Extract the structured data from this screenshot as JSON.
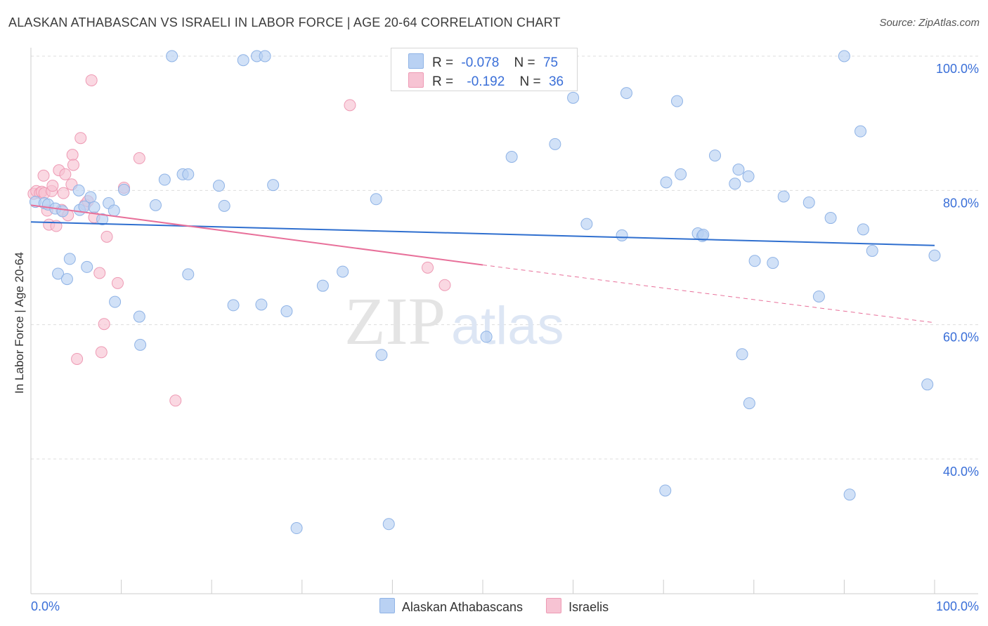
{
  "title": "ALASKAN ATHABASCAN VS ISRAELI IN LABOR FORCE | AGE 20-64 CORRELATION CHART",
  "source": "Source: ZipAtlas.com",
  "watermark": {
    "zip": "ZIP",
    "atlas": "atlas"
  },
  "colors": {
    "blue_fill": "#b9d1f3",
    "blue_stroke": "#8fb3e6",
    "blue_line": "#2f6fcf",
    "pink_fill": "#f7c3d3",
    "pink_stroke": "#ee9ab4",
    "pink_line": "#e8709a",
    "axis_text": "#3a6fd8",
    "grid": "#dddddd"
  },
  "legend_top": {
    "rows": [
      {
        "series": "blue",
        "r_label": "R =",
        "r_value": "-0.078",
        "n_label": "N =",
        "n_value": "75"
      },
      {
        "series": "pink",
        "r_label": "R =",
        "r_value": "-0.192",
        "n_label": "N =",
        "n_value": "36"
      }
    ]
  },
  "legend_bottom": [
    {
      "series": "blue",
      "label": "Alaskan Athabascans"
    },
    {
      "series": "pink",
      "label": "Israelis"
    }
  ],
  "chart_data": {
    "type": "scatter",
    "title": "ALASKAN ATHABASCAN VS ISRAELI IN LABOR FORCE | AGE 20-64 CORRELATION CHART",
    "xlabel": "",
    "ylabel": "In Labor Force | Age 20-64",
    "xlim": [
      0,
      100
    ],
    "ylim": [
      20,
      101
    ],
    "x_tick_labels": [
      {
        "value": 0,
        "label": "0.0%"
      },
      {
        "value": 100,
        "label": "100.0%"
      }
    ],
    "y_tick_labels": [
      {
        "value": 100,
        "label": "100.0%"
      },
      {
        "value": 80,
        "label": "80.0%"
      },
      {
        "value": 60,
        "label": "60.0%"
      },
      {
        "value": 40,
        "label": "40.0%"
      }
    ],
    "series": [
      {
        "name": "Alaskan Athabascans",
        "color": "blue",
        "r": -0.078,
        "n": 75,
        "trend": {
          "x0": 0,
          "y0": 75.3,
          "x1": 100,
          "y1": 71.8
        },
        "points": [
          [
            0.5,
            78.3
          ],
          [
            1.5,
            78.1
          ],
          [
            1.9,
            77.9
          ],
          [
            2.7,
            77.3
          ],
          [
            3.5,
            76.9
          ],
          [
            3.0,
            67.6
          ],
          [
            4.0,
            66.8
          ],
          [
            4.3,
            69.8
          ],
          [
            5.4,
            77.1
          ],
          [
            5.3,
            80.0
          ],
          [
            6.2,
            68.6
          ],
          [
            6.6,
            79.0
          ],
          [
            5.9,
            77.6
          ],
          [
            7.9,
            75.7
          ],
          [
            8.6,
            78.1
          ],
          [
            9.2,
            77.0
          ],
          [
            9.3,
            63.4
          ],
          [
            10.3,
            80.1
          ],
          [
            12.0,
            61.2
          ],
          [
            12.1,
            57.0
          ],
          [
            13.8,
            77.8
          ],
          [
            14.8,
            81.6
          ],
          [
            15.6,
            100.0
          ],
          [
            16.8,
            82.4
          ],
          [
            17.4,
            82.4
          ],
          [
            17.4,
            67.5
          ],
          [
            20.8,
            80.7
          ],
          [
            21.4,
            77.7
          ],
          [
            22.4,
            62.9
          ],
          [
            23.5,
            99.4
          ],
          [
            25.0,
            100.0
          ],
          [
            25.5,
            63.0
          ],
          [
            25.9,
            100.0
          ],
          [
            26.8,
            80.8
          ],
          [
            28.3,
            62.0
          ],
          [
            29.4,
            29.7
          ],
          [
            32.3,
            65.8
          ],
          [
            34.5,
            67.9
          ],
          [
            38.2,
            78.7
          ],
          [
            38.8,
            55.5
          ],
          [
            39.6,
            30.3
          ],
          [
            50.4,
            58.2
          ],
          [
            53.2,
            85.0
          ],
          [
            58.0,
            86.9
          ],
          [
            60.0,
            93.8
          ],
          [
            61.5,
            75.0
          ],
          [
            65.4,
            73.3
          ],
          [
            65.9,
            94.5
          ],
          [
            70.2,
            35.3
          ],
          [
            70.3,
            81.2
          ],
          [
            71.5,
            93.3
          ],
          [
            71.9,
            82.4
          ],
          [
            73.8,
            73.6
          ],
          [
            74.3,
            73.2
          ],
          [
            74.4,
            73.4
          ],
          [
            75.7,
            85.2
          ],
          [
            77.9,
            81.0
          ],
          [
            78.3,
            83.1
          ],
          [
            78.7,
            55.6
          ],
          [
            79.4,
            82.1
          ],
          [
            79.5,
            48.3
          ],
          [
            80.1,
            69.5
          ],
          [
            82.1,
            69.2
          ],
          [
            83.3,
            79.1
          ],
          [
            86.1,
            78.2
          ],
          [
            87.2,
            64.2
          ],
          [
            88.5,
            75.9
          ],
          [
            90.0,
            100.0
          ],
          [
            90.6,
            34.7
          ],
          [
            91.8,
            88.8
          ],
          [
            92.1,
            74.2
          ],
          [
            93.1,
            71.0
          ],
          [
            99.2,
            51.1
          ],
          [
            100.0,
            70.3
          ],
          [
            7.0,
            77.5
          ]
        ]
      },
      {
        "name": "Israelis",
        "color": "pink",
        "r": -0.192,
        "n": 36,
        "trend": {
          "x0": 0,
          "y0": 77.8,
          "x1": 50,
          "y1": 68.9
        },
        "trend_dashed": {
          "x0": 50,
          "y0": 68.9,
          "x1": 100,
          "y1": 60.3
        },
        "points": [
          [
            0.3,
            79.5
          ],
          [
            0.6,
            79.9
          ],
          [
            1.0,
            79.6
          ],
          [
            1.2,
            79.8
          ],
          [
            1.4,
            82.2
          ],
          [
            1.5,
            79.6
          ],
          [
            1.8,
            77.0
          ],
          [
            2.0,
            74.9
          ],
          [
            2.3,
            79.9
          ],
          [
            2.4,
            80.7
          ],
          [
            2.8,
            74.7
          ],
          [
            3.1,
            83.0
          ],
          [
            3.4,
            77.1
          ],
          [
            3.6,
            79.6
          ],
          [
            3.8,
            82.4
          ],
          [
            4.1,
            76.3
          ],
          [
            4.5,
            80.9
          ],
          [
            4.6,
            85.3
          ],
          [
            4.7,
            83.8
          ],
          [
            5.1,
            54.9
          ],
          [
            5.5,
            87.8
          ],
          [
            6.0,
            77.9
          ],
          [
            6.3,
            78.4
          ],
          [
            6.7,
            96.4
          ],
          [
            7.0,
            76.0
          ],
          [
            7.6,
            67.7
          ],
          [
            7.8,
            55.9
          ],
          [
            8.1,
            60.1
          ],
          [
            8.4,
            73.1
          ],
          [
            9.6,
            66.2
          ],
          [
            10.3,
            80.4
          ],
          [
            12.0,
            84.8
          ],
          [
            16.0,
            48.7
          ],
          [
            35.3,
            92.7
          ],
          [
            43.9,
            68.5
          ],
          [
            45.8,
            65.9
          ]
        ]
      }
    ]
  }
}
